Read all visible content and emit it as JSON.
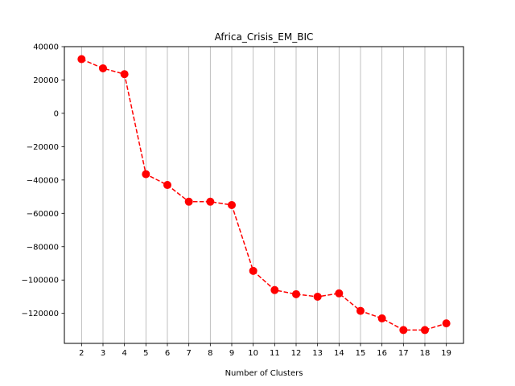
{
  "chart_data": {
    "type": "line",
    "title": "Africa_Crisis_EM_BIC",
    "xlabel": "Number of Clusters",
    "ylabel": "",
    "x": [
      2,
      3,
      4,
      5,
      6,
      7,
      8,
      9,
      10,
      11,
      12,
      13,
      14,
      15,
      16,
      17,
      18,
      19
    ],
    "series": [
      {
        "values": [
          32500,
          27000,
          23500,
          -36500,
          -43000,
          -53000,
          -53000,
          -55000,
          -94500,
          -106000,
          -108500,
          -110000,
          -108000,
          -118500,
          -123000,
          -130000,
          -130000,
          -126000
        ],
        "color": "#ff0000",
        "line_style": "dashed",
        "marker": "circle"
      }
    ],
    "xlim": [
      1.2,
      19.8
    ],
    "ylim": [
      -138000,
      40000
    ],
    "yticks": [
      40000,
      20000,
      0,
      -20000,
      -40000,
      -60000,
      -80000,
      -100000,
      -120000
    ],
    "ytick_labels": [
      "40000",
      "20000",
      "0",
      "−20000",
      "−40000",
      "−60000",
      "−80000",
      "−100000",
      "−120000"
    ],
    "grid": "vertical",
    "grid_color": "#b0b0b0",
    "legend": "none"
  }
}
